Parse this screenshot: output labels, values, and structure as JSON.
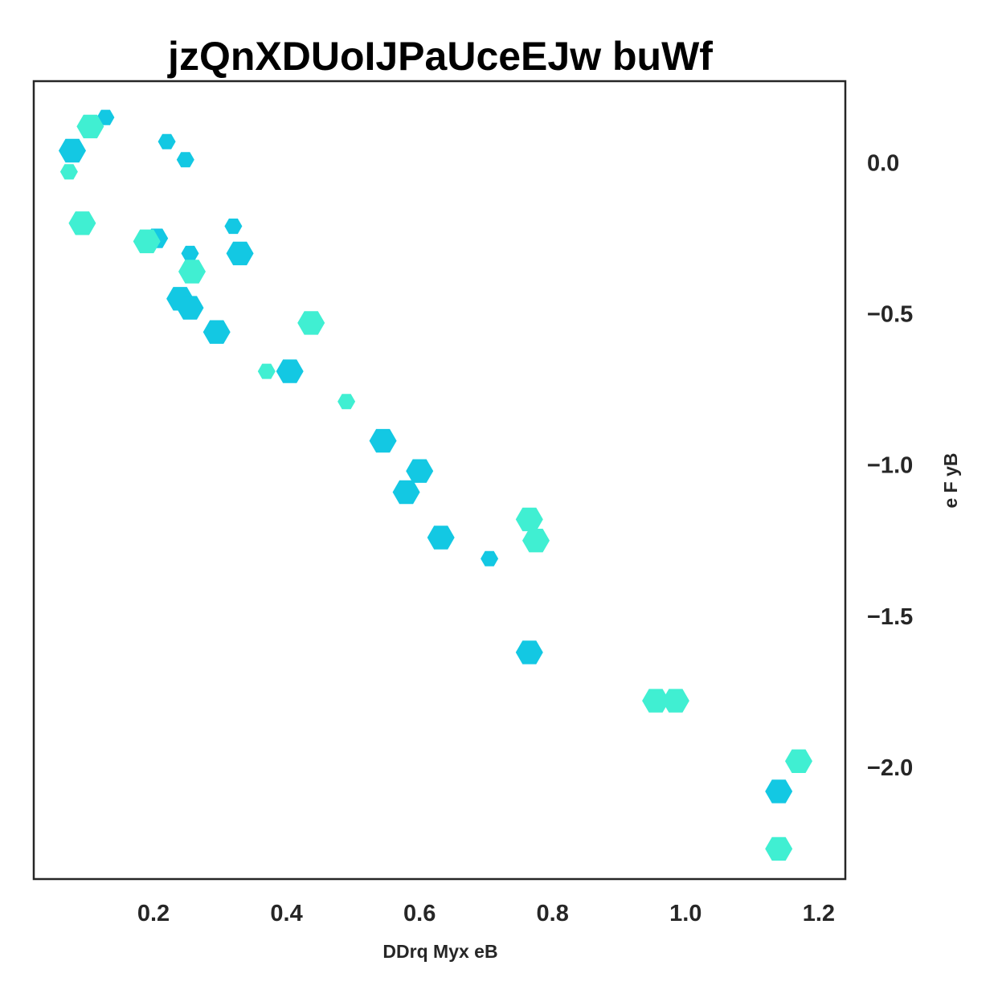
{
  "chart_data": {
    "type": "scatter",
    "title": "jzQnXDUoIJPaUceEJw buWf",
    "xlabel": "DDrq Myx eB",
    "ylabel": "e F yB",
    "xlim": [
      0.02,
      1.24
    ],
    "ylim": [
      -2.37,
      0.27
    ],
    "xticks": [
      0.2,
      0.4,
      0.6,
      0.8,
      1.0,
      1.2
    ],
    "xtick_labels": [
      "0.2",
      "0.4",
      "0.6",
      "0.8",
      "1.0",
      "1.2"
    ],
    "yticks": [
      0.0,
      -0.5,
      -1.0,
      -1.5,
      -2.0
    ],
    "ytick_labels": [
      "0.0",
      "−0.5",
      "−1.0",
      "−1.5",
      "−2.0"
    ],
    "y_axis_side": "right",
    "grid": false,
    "marker": "hexagon",
    "colors": {
      "cyan": "#13c8e3",
      "turquoise": "#40efd2"
    },
    "points": [
      {
        "x": 0.128,
        "y": 0.15,
        "size": "s",
        "color": "cyan"
      },
      {
        "x": 0.105,
        "y": 0.12,
        "size": "l",
        "color": "turquoise"
      },
      {
        "x": 0.078,
        "y": 0.04,
        "size": "l",
        "color": "cyan"
      },
      {
        "x": 0.073,
        "y": -0.03,
        "size": "s",
        "color": "turquoise"
      },
      {
        "x": 0.22,
        "y": 0.07,
        "size": "s",
        "color": "cyan"
      },
      {
        "x": 0.248,
        "y": 0.01,
        "size": "s",
        "color": "cyan"
      },
      {
        "x": 0.093,
        "y": -0.2,
        "size": "l",
        "color": "turquoise"
      },
      {
        "x": 0.205,
        "y": -0.25,
        "size": "m",
        "color": "cyan"
      },
      {
        "x": 0.19,
        "y": -0.26,
        "size": "l",
        "color": "turquoise"
      },
      {
        "x": 0.32,
        "y": -0.21,
        "size": "s",
        "color": "cyan"
      },
      {
        "x": 0.255,
        "y": -0.3,
        "size": "s",
        "color": "cyan"
      },
      {
        "x": 0.33,
        "y": -0.3,
        "size": "l",
        "color": "cyan"
      },
      {
        "x": 0.258,
        "y": -0.36,
        "size": "l",
        "color": "turquoise"
      },
      {
        "x": 0.24,
        "y": -0.45,
        "size": "l",
        "color": "cyan"
      },
      {
        "x": 0.255,
        "y": -0.48,
        "size": "l",
        "color": "cyan"
      },
      {
        "x": 0.295,
        "y": -0.56,
        "size": "l",
        "color": "cyan"
      },
      {
        "x": 0.437,
        "y": -0.53,
        "size": "l",
        "color": "turquoise"
      },
      {
        "x": 0.37,
        "y": -0.69,
        "size": "s",
        "color": "turquoise"
      },
      {
        "x": 0.405,
        "y": -0.69,
        "size": "l",
        "color": "cyan"
      },
      {
        "x": 0.49,
        "y": -0.79,
        "size": "s",
        "color": "turquoise"
      },
      {
        "x": 0.545,
        "y": -0.92,
        "size": "l",
        "color": "cyan"
      },
      {
        "x": 0.6,
        "y": -1.02,
        "size": "l",
        "color": "cyan"
      },
      {
        "x": 0.58,
        "y": -1.09,
        "size": "l",
        "color": "cyan"
      },
      {
        "x": 0.765,
        "y": -1.18,
        "size": "l",
        "color": "turquoise"
      },
      {
        "x": 0.775,
        "y": -1.25,
        "size": "l",
        "color": "turquoise"
      },
      {
        "x": 0.632,
        "y": -1.24,
        "size": "l",
        "color": "cyan"
      },
      {
        "x": 0.705,
        "y": -1.31,
        "size": "s",
        "color": "cyan"
      },
      {
        "x": 0.765,
        "y": -1.62,
        "size": "l",
        "color": "cyan"
      },
      {
        "x": 0.955,
        "y": -1.78,
        "size": "l",
        "color": "turquoise"
      },
      {
        "x": 0.985,
        "y": -1.78,
        "size": "l",
        "color": "turquoise"
      },
      {
        "x": 1.17,
        "y": -1.98,
        "size": "l",
        "color": "turquoise"
      },
      {
        "x": 1.14,
        "y": -2.08,
        "size": "l",
        "color": "cyan"
      },
      {
        "x": 1.14,
        "y": -2.27,
        "size": "l",
        "color": "turquoise"
      }
    ]
  }
}
